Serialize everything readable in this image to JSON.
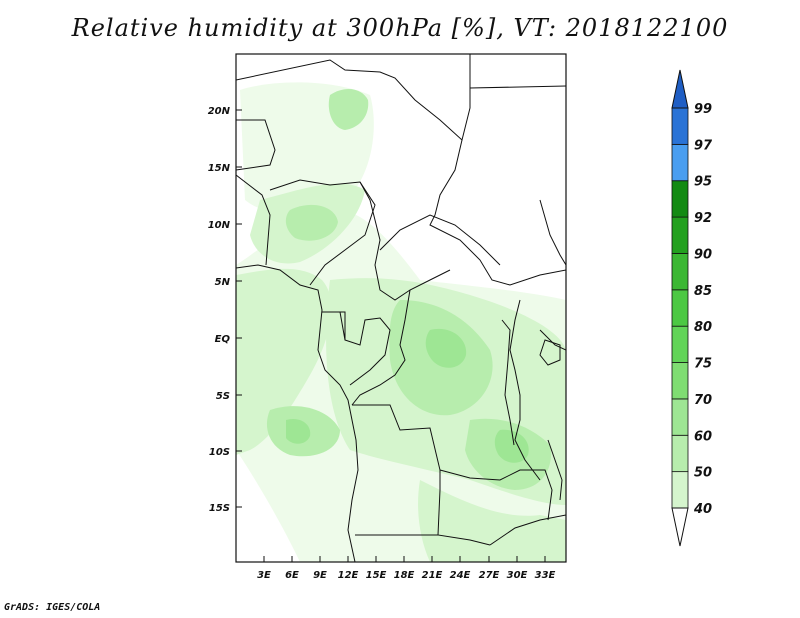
{
  "title": "Relative humidity at 300hPa [%], VT: 2018122100",
  "credit": "GrADS: IGES/COLA",
  "map": {
    "lat_labels": [
      "20N",
      "15N",
      "10N",
      "5N",
      "EQ",
      "5S",
      "10S",
      "15S"
    ],
    "lon_labels": [
      "3E",
      "6E",
      "9E",
      "12E",
      "15E",
      "18E",
      "21E",
      "24E",
      "27E",
      "30E",
      "33E"
    ]
  },
  "colorbar": {
    "levels": [
      "40",
      "50",
      "60",
      "70",
      "75",
      "80",
      "85",
      "90",
      "92",
      "95",
      "97",
      "99"
    ],
    "colors": [
      "#eefbea",
      "#d5f5cd",
      "#b7edad",
      "#9ee694",
      "#7fdd72",
      "#62d458",
      "#4cc843",
      "#3bb733",
      "#23a01f",
      "#138a13",
      "#4a9ef0",
      "#2a73d6",
      "#1f5ec4"
    ]
  }
}
